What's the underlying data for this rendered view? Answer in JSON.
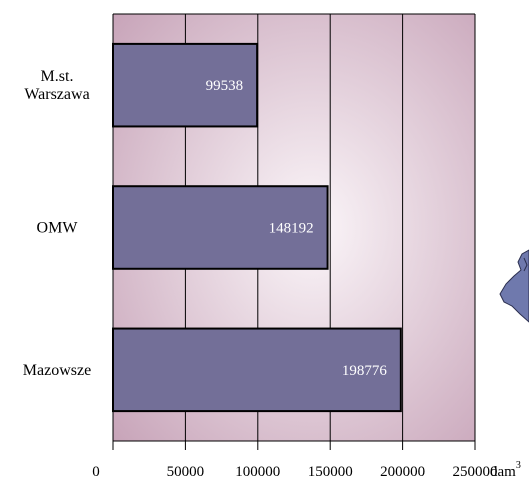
{
  "chart_data": {
    "type": "bar",
    "orientation": "horizontal",
    "categories": [
      "M.st.\nWarszawa",
      "OMW",
      "Mazowsze"
    ],
    "values": [
      99538,
      148192,
      198776
    ],
    "data_labels": [
      "99538",
      "148192",
      "198776"
    ],
    "xlim": [
      0,
      250000
    ],
    "x_ticks": [
      0,
      50000,
      100000,
      150000,
      200000,
      250000
    ],
    "x_tick_labels": [
      "0",
      "50000",
      "100000",
      "150000",
      "200000",
      "250000"
    ],
    "x_unit": "dam",
    "x_unit_sup": "3",
    "grid": true,
    "legend": "none",
    "colors": {
      "bar_fill": "#736f98",
      "bar_stroke": "#000000",
      "plot_bg_edge": "#c7a3b8",
      "plot_bg_center": "#fbf6f9",
      "label_inside": "#ffffff"
    }
  },
  "decorations": {
    "map_fragment_color": "#6f79ad"
  }
}
